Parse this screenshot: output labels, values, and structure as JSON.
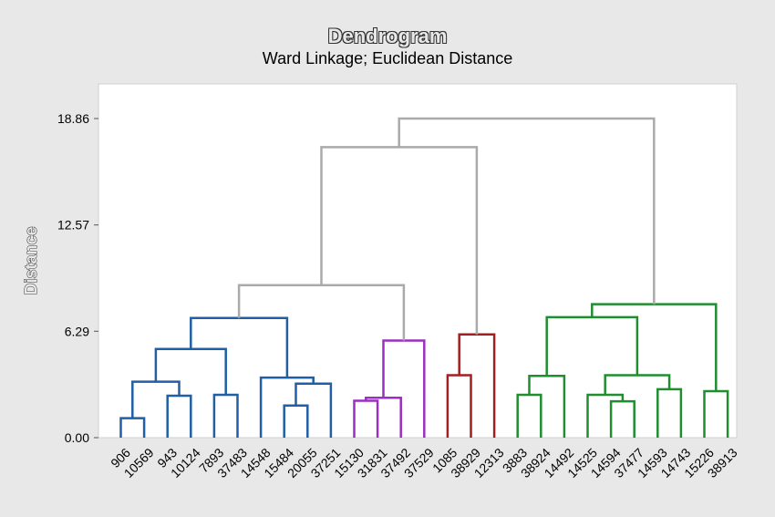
{
  "chart_data": {
    "type": "dendrogram",
    "title": "Dendrogram",
    "subtitle": "Ward Linkage; Euclidean Distance",
    "ylabel": "Distance",
    "ylim": [
      0,
      19.8
    ],
    "yticks": [
      {
        "value": 0.0,
        "label": "0.00"
      },
      {
        "value": 6.29,
        "label": "6.29"
      },
      {
        "value": 12.57,
        "label": "12.57"
      },
      {
        "value": 18.86,
        "label": "18.86"
      }
    ],
    "grid": false,
    "leaves": [
      "906",
      "10569",
      "943",
      "10124",
      "7893",
      "37483",
      "14548",
      "15484",
      "20055",
      "37251",
      "15130",
      "31831",
      "37492",
      "37529",
      "1085",
      "38929",
      "12313",
      "3883",
      "38924",
      "14492",
      "14525",
      "14594",
      "37477",
      "14593",
      "14743",
      "15226",
      "38913"
    ],
    "colors": {
      "blue": "#1f5fa6",
      "purple": "#9b2fbf",
      "red": "#a31f1f",
      "green": "#1e8e2e",
      "gray": "#aaaaaa"
    },
    "merges": [
      {
        "id": "m1",
        "left": "906",
        "right": "10569",
        "height": 1.15,
        "color": "blue"
      },
      {
        "id": "m2",
        "left": "943",
        "right": "10124",
        "height": 2.48,
        "color": "blue"
      },
      {
        "id": "m3",
        "left": "m1",
        "right": "m2",
        "height": 3.31,
        "color": "blue"
      },
      {
        "id": "m4",
        "left": "7893",
        "right": "37483",
        "height": 2.53,
        "color": "blue"
      },
      {
        "id": "m5",
        "left": "m3",
        "right": "m4",
        "height": 5.24,
        "color": "blue"
      },
      {
        "id": "m6",
        "left": "15484",
        "right": "20055",
        "height": 1.9,
        "color": "blue"
      },
      {
        "id": "m7",
        "left": "m6",
        "right": "37251",
        "height": 3.19,
        "color": "blue"
      },
      {
        "id": "m8",
        "left": "14548",
        "right": "m7",
        "height": 3.55,
        "color": "blue"
      },
      {
        "id": "m9",
        "left": "m5",
        "right": "m8",
        "height": 7.07,
        "color": "blue"
      },
      {
        "id": "m10",
        "left": "15130",
        "right": "31831",
        "height": 2.18,
        "color": "purple"
      },
      {
        "id": "m11",
        "left": "m10",
        "right": "37492",
        "height": 2.36,
        "color": "purple"
      },
      {
        "id": "m12",
        "left": "m11",
        "right": "37529",
        "height": 5.74,
        "color": "purple"
      },
      {
        "id": "m13",
        "left": "m9",
        "right": "m12",
        "height": 9.01,
        "color": "gray"
      },
      {
        "id": "m14",
        "left": "1085",
        "right": "38929",
        "height": 3.69,
        "color": "red"
      },
      {
        "id": "m15",
        "left": "m14",
        "right": "12313",
        "height": 6.1,
        "color": "red"
      },
      {
        "id": "m16",
        "left": "m13",
        "right": "m15",
        "height": 17.17,
        "color": "gray"
      },
      {
        "id": "m17",
        "left": "3883",
        "right": "38924",
        "height": 2.53,
        "color": "green"
      },
      {
        "id": "m18",
        "left": "m17",
        "right": "14492",
        "height": 3.65,
        "color": "green"
      },
      {
        "id": "m19",
        "left": "14594",
        "right": "37477",
        "height": 2.15,
        "color": "green"
      },
      {
        "id": "m20",
        "left": "14525",
        "right": "m19",
        "height": 2.53,
        "color": "green"
      },
      {
        "id": "m21",
        "left": "14593",
        "right": "14743",
        "height": 2.86,
        "color": "green"
      },
      {
        "id": "m22",
        "left": "m20",
        "right": "m21",
        "height": 3.69,
        "color": "green"
      },
      {
        "id": "m23",
        "left": "m18",
        "right": "m22",
        "height": 7.12,
        "color": "green"
      },
      {
        "id": "m24",
        "left": "15226",
        "right": "38913",
        "height": 2.75,
        "color": "green"
      },
      {
        "id": "m25",
        "left": "m23",
        "right": "m24",
        "height": 7.89,
        "color": "green"
      },
      {
        "id": "m26",
        "left": "m16",
        "right": "m25",
        "height": 18.86,
        "color": "gray"
      }
    ]
  }
}
